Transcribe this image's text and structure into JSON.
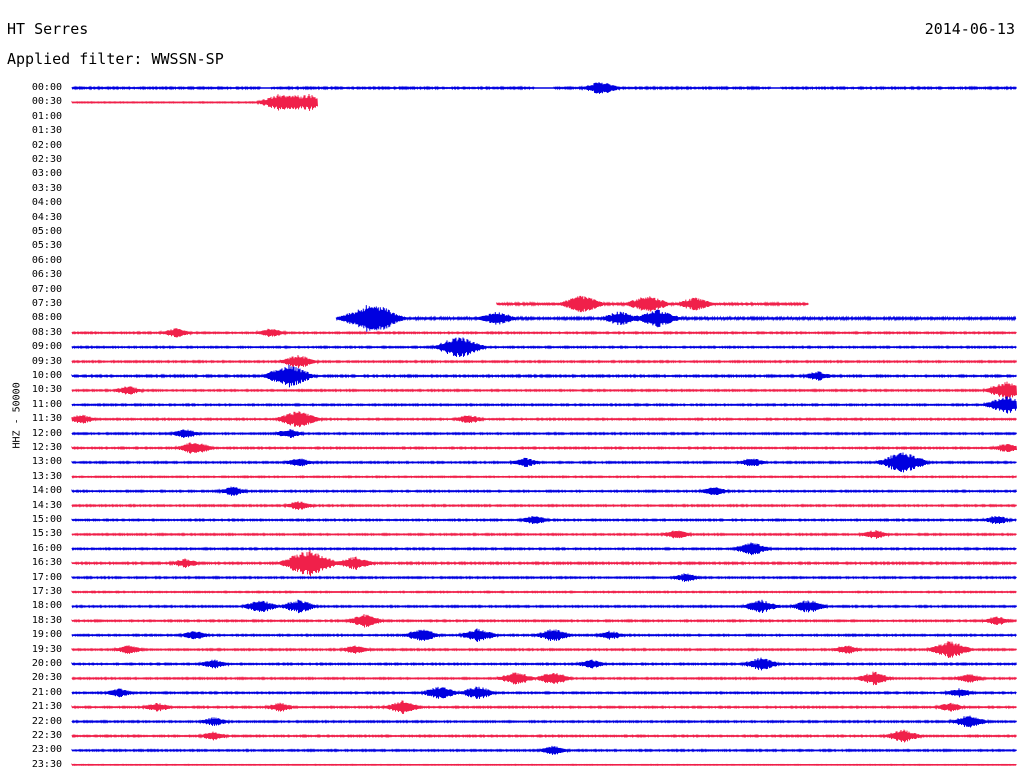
{
  "header": {
    "station": "HT Serres",
    "date": "2014-06-13",
    "filter_label": "Applied filter: WWSSN-SP"
  },
  "chart_data": {
    "type": "helicorder",
    "title": "HT Serres",
    "date": "2014-06-13",
    "filter": "WWSSN-SP",
    "ylabel": "HHZ - 50000",
    "row_interval_minutes": 30,
    "colors": {
      "even": "#0000e0",
      "odd": "#f0204a"
    },
    "rows": [
      {
        "time": "00:00",
        "start": 0.0,
        "end": 1.0,
        "amp": 0.7,
        "gaps": [
          [
            0.2,
            0.21
          ],
          [
            0.49,
            0.51
          ],
          [
            0.74,
            0.75
          ]
        ],
        "events": [
          [
            0.56,
            3
          ]
        ]
      },
      {
        "time": "00:30",
        "start": 0.0,
        "end": 0.26,
        "amp": 0.4,
        "gaps": [],
        "events": [
          [
            0.22,
            4
          ],
          [
            0.25,
            4
          ]
        ]
      },
      {
        "time": "01:00",
        "start": null,
        "end": null,
        "amp": 0,
        "gaps": [],
        "events": []
      },
      {
        "time": "01:30",
        "start": null,
        "end": null,
        "amp": 0,
        "gaps": [],
        "events": []
      },
      {
        "time": "02:00",
        "start": null,
        "end": null,
        "amp": 0,
        "gaps": [],
        "events": []
      },
      {
        "time": "02:30",
        "start": null,
        "end": null,
        "amp": 0,
        "gaps": [],
        "events": []
      },
      {
        "time": "03:00",
        "start": null,
        "end": null,
        "amp": 0,
        "gaps": [],
        "events": []
      },
      {
        "time": "03:30",
        "start": null,
        "end": null,
        "amp": 0,
        "gaps": [],
        "events": []
      },
      {
        "time": "04:00",
        "start": null,
        "end": null,
        "amp": 0,
        "gaps": [],
        "events": []
      },
      {
        "time": "04:30",
        "start": null,
        "end": null,
        "amp": 0,
        "gaps": [],
        "events": []
      },
      {
        "time": "05:00",
        "start": null,
        "end": null,
        "amp": 0,
        "gaps": [],
        "events": []
      },
      {
        "time": "05:30",
        "start": null,
        "end": null,
        "amp": 0,
        "gaps": [],
        "events": []
      },
      {
        "time": "06:00",
        "start": null,
        "end": null,
        "amp": 0,
        "gaps": [],
        "events": []
      },
      {
        "time": "06:30",
        "start": null,
        "end": null,
        "amp": 0,
        "gaps": [],
        "events": []
      },
      {
        "time": "07:00",
        "start": null,
        "end": null,
        "amp": 0,
        "gaps": [],
        "events": []
      },
      {
        "time": "07:30",
        "start": 0.45,
        "end": 0.78,
        "amp": 0.8,
        "gaps": [],
        "events": [
          [
            0.54,
            4
          ],
          [
            0.61,
            4
          ],
          [
            0.66,
            3
          ]
        ]
      },
      {
        "time": "08:00",
        "start": 0.28,
        "end": 1.0,
        "amp": 0.9,
        "gaps": [],
        "events": [
          [
            0.31,
            5
          ],
          [
            0.33,
            4
          ],
          [
            0.45,
            3
          ],
          [
            0.58,
            3
          ],
          [
            0.62,
            4
          ]
        ]
      },
      {
        "time": "08:30",
        "start": 0.0,
        "end": 1.0,
        "amp": 0.6,
        "gaps": [],
        "events": [
          [
            0.11,
            2
          ],
          [
            0.21,
            2
          ]
        ]
      },
      {
        "time": "09:00",
        "start": 0.0,
        "end": 1.0,
        "amp": 0.6,
        "gaps": [],
        "events": [
          [
            0.41,
            5
          ]
        ]
      },
      {
        "time": "09:30",
        "start": 0.0,
        "end": 1.0,
        "amp": 0.6,
        "gaps": [],
        "events": [
          [
            0.24,
            3
          ]
        ]
      },
      {
        "time": "10:00",
        "start": 0.0,
        "end": 1.0,
        "amp": 0.7,
        "gaps": [],
        "events": [
          [
            0.23,
            5
          ],
          [
            0.79,
            2
          ]
        ]
      },
      {
        "time": "10:30",
        "start": 0.0,
        "end": 1.0,
        "amp": 0.6,
        "gaps": [],
        "events": [
          [
            0.06,
            2
          ],
          [
            0.99,
            4
          ]
        ]
      },
      {
        "time": "11:00",
        "start": 0.0,
        "end": 1.0,
        "amp": 0.6,
        "gaps": [],
        "events": [
          [
            0.99,
            4
          ]
        ]
      },
      {
        "time": "11:30",
        "start": 0.0,
        "end": 1.0,
        "amp": 0.6,
        "gaps": [],
        "events": [
          [
            0.01,
            2
          ],
          [
            0.24,
            4
          ],
          [
            0.42,
            2
          ]
        ]
      },
      {
        "time": "12:00",
        "start": 0.0,
        "end": 1.0,
        "amp": 0.6,
        "gaps": [],
        "events": [
          [
            0.12,
            2
          ],
          [
            0.23,
            2
          ]
        ]
      },
      {
        "time": "12:30",
        "start": 0.0,
        "end": 1.0,
        "amp": 0.6,
        "gaps": [],
        "events": [
          [
            0.13,
            3
          ],
          [
            0.99,
            2
          ]
        ]
      },
      {
        "time": "13:00",
        "start": 0.0,
        "end": 1.0,
        "amp": 0.6,
        "gaps": [],
        "events": [
          [
            0.24,
            2
          ],
          [
            0.48,
            2
          ],
          [
            0.72,
            2
          ],
          [
            0.88,
            5
          ]
        ]
      },
      {
        "time": "13:30",
        "start": 0.0,
        "end": 1.0,
        "amp": 0.5,
        "gaps": [],
        "events": []
      },
      {
        "time": "14:00",
        "start": 0.0,
        "end": 1.0,
        "amp": 0.6,
        "gaps": [],
        "events": [
          [
            0.17,
            2
          ],
          [
            0.68,
            2
          ]
        ]
      },
      {
        "time": "14:30",
        "start": 0.0,
        "end": 1.0,
        "amp": 0.6,
        "gaps": [],
        "events": [
          [
            0.24,
            2
          ]
        ]
      },
      {
        "time": "15:00",
        "start": 0.0,
        "end": 1.0,
        "amp": 0.6,
        "gaps": [],
        "events": [
          [
            0.49,
            2
          ],
          [
            0.98,
            2
          ]
        ]
      },
      {
        "time": "15:30",
        "start": 0.0,
        "end": 1.0,
        "amp": 0.6,
        "gaps": [],
        "events": [
          [
            0.64,
            2
          ],
          [
            0.85,
            2
          ]
        ]
      },
      {
        "time": "16:00",
        "start": 0.0,
        "end": 1.0,
        "amp": 0.6,
        "gaps": [],
        "events": [
          [
            0.72,
            3
          ]
        ]
      },
      {
        "time": "16:30",
        "start": 0.0,
        "end": 1.0,
        "amp": 0.7,
        "gaps": [],
        "events": [
          [
            0.12,
            2
          ],
          [
            0.25,
            6
          ],
          [
            0.3,
            3
          ]
        ]
      },
      {
        "time": "17:00",
        "start": 0.0,
        "end": 1.0,
        "amp": 0.6,
        "gaps": [],
        "events": [
          [
            0.65,
            2
          ]
        ]
      },
      {
        "time": "17:30",
        "start": 0.0,
        "end": 1.0,
        "amp": 0.5,
        "gaps": [],
        "events": []
      },
      {
        "time": "18:00",
        "start": 0.0,
        "end": 1.0,
        "amp": 0.6,
        "gaps": [],
        "events": [
          [
            0.2,
            3
          ],
          [
            0.24,
            3
          ],
          [
            0.73,
            3
          ],
          [
            0.78,
            3
          ]
        ]
      },
      {
        "time": "18:30",
        "start": 0.0,
        "end": 1.0,
        "amp": 0.6,
        "gaps": [],
        "events": [
          [
            0.31,
            3
          ],
          [
            0.98,
            2
          ]
        ]
      },
      {
        "time": "19:00",
        "start": 0.0,
        "end": 1.0,
        "amp": 0.6,
        "gaps": [],
        "events": [
          [
            0.13,
            2
          ],
          [
            0.37,
            3
          ],
          [
            0.43,
            3
          ],
          [
            0.51,
            3
          ],
          [
            0.57,
            2
          ]
        ]
      },
      {
        "time": "19:30",
        "start": 0.0,
        "end": 1.0,
        "amp": 0.6,
        "gaps": [],
        "events": [
          [
            0.06,
            2
          ],
          [
            0.3,
            2
          ],
          [
            0.82,
            2
          ],
          [
            0.93,
            4
          ]
        ]
      },
      {
        "time": "20:00",
        "start": 0.0,
        "end": 1.0,
        "amp": 0.6,
        "gaps": [],
        "events": [
          [
            0.15,
            2
          ],
          [
            0.55,
            2
          ],
          [
            0.73,
            3
          ]
        ]
      },
      {
        "time": "20:30",
        "start": 0.0,
        "end": 1.0,
        "amp": 0.6,
        "gaps": [],
        "events": [
          [
            0.47,
            3
          ],
          [
            0.51,
            3
          ],
          [
            0.85,
            3
          ],
          [
            0.95,
            2
          ]
        ]
      },
      {
        "time": "21:00",
        "start": 0.0,
        "end": 1.0,
        "amp": 0.6,
        "gaps": [],
        "events": [
          [
            0.05,
            2
          ],
          [
            0.39,
            3
          ],
          [
            0.43,
            3
          ],
          [
            0.94,
            2
          ]
        ]
      },
      {
        "time": "21:30",
        "start": 0.0,
        "end": 1.0,
        "amp": 0.6,
        "gaps": [],
        "events": [
          [
            0.09,
            2
          ],
          [
            0.22,
            2
          ],
          [
            0.35,
            3
          ],
          [
            0.93,
            2
          ]
        ]
      },
      {
        "time": "22:00",
        "start": 0.0,
        "end": 1.0,
        "amp": 0.6,
        "gaps": [],
        "events": [
          [
            0.15,
            2
          ],
          [
            0.95,
            3
          ]
        ]
      },
      {
        "time": "22:30",
        "start": 0.0,
        "end": 1.0,
        "amp": 0.6,
        "gaps": [],
        "events": [
          [
            0.15,
            2
          ],
          [
            0.88,
            3
          ]
        ]
      },
      {
        "time": "23:00",
        "start": 0.0,
        "end": 1.0,
        "amp": 0.6,
        "gaps": [],
        "events": [
          [
            0.51,
            2
          ]
        ]
      },
      {
        "time": "23:30",
        "start": 0.0,
        "end": 1.0,
        "amp": 0.3,
        "gaps": [],
        "events": []
      }
    ]
  }
}
